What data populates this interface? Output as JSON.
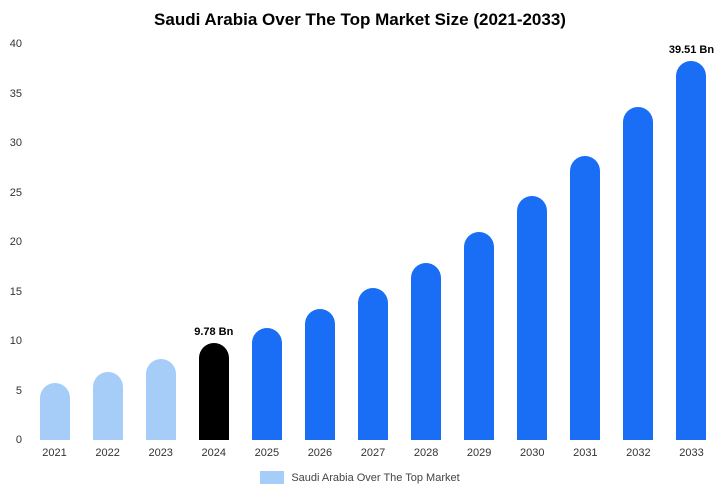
{
  "title": "Saudi Arabia Over The Top Market Size (2021-2033)",
  "legend": {
    "label": "Saudi Arabia Over The Top Market",
    "swatch_color": "#a6cdf8"
  },
  "chart_data": {
    "type": "bar",
    "title": "Saudi Arabia Over The Top Market Size (2021-2033)",
    "categories": [
      "2021",
      "2022",
      "2023",
      "2024",
      "2025",
      "2026",
      "2027",
      "2028",
      "2029",
      "2030",
      "2031",
      "2032",
      "2033"
    ],
    "values": [
      5.8,
      6.9,
      8.2,
      9.78,
      11.3,
      13.2,
      15.4,
      17.9,
      21.0,
      24.6,
      28.7,
      33.6,
      39.51
    ],
    "colors": [
      "#a6cdf8",
      "#a6cdf8",
      "#a6cdf8",
      "#000000",
      "#1a6ef5",
      "#1a6ef5",
      "#1a6ef5",
      "#1a6ef5",
      "#1a6ef5",
      "#1a6ef5",
      "#1a6ef5",
      "#1a6ef5",
      "#1a6ef5"
    ],
    "value_labels": [
      "",
      "",
      "",
      "9.78 Bn",
      "",
      "",
      "",
      "",
      "",
      "",
      "",
      "",
      "39.51 Bn"
    ],
    "yticks": [
      0,
      5,
      10,
      15,
      20,
      25,
      30,
      35,
      40
    ],
    "ylim": [
      0,
      40
    ],
    "xlabel": "",
    "ylabel": "",
    "grid": false,
    "legend_position": "bottom",
    "unit": "Bn"
  }
}
